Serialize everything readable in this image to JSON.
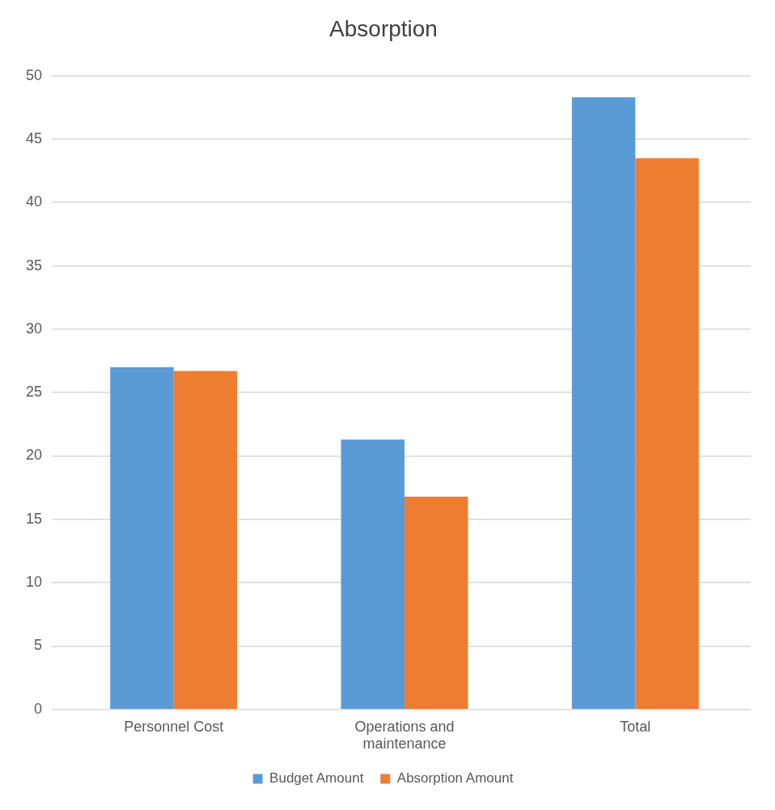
{
  "chart_data": {
    "type": "bar",
    "title": "Absorption",
    "categories": [
      "Personnel Cost",
      "Operations and maintenance",
      "Total"
    ],
    "series": [
      {
        "name": "Budget Amount",
        "color": "#5b9bd5",
        "values": [
          27,
          21.3,
          48.3
        ]
      },
      {
        "name": "Absorption Amount",
        "color": "#ed7d31",
        "values": [
          26.7,
          16.8,
          43.5
        ]
      }
    ],
    "ylim": [
      0,
      50
    ],
    "yticks": [
      0,
      5,
      10,
      15,
      20,
      25,
      30,
      35,
      40,
      45,
      50
    ],
    "grid": "y",
    "legend": "bottom"
  }
}
